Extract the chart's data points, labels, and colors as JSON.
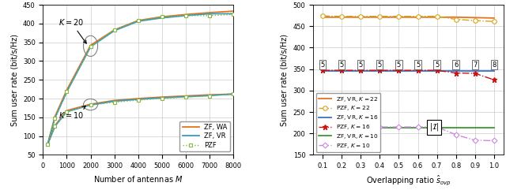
{
  "left": {
    "M_vals": [
      200,
      500,
      1000,
      2000,
      3000,
      4000,
      5000,
      6000,
      7000,
      8000
    ],
    "K20_ZF_WA": [
      79,
      152,
      223,
      342,
      383,
      408,
      418,
      424,
      429,
      433
    ],
    "K20_ZF_VR": [
      79,
      148,
      218,
      338,
      381,
      406,
      415,
      421,
      426,
      426
    ],
    "K20_PZF": [
      79,
      148,
      218,
      338,
      383,
      408,
      418,
      421,
      421,
      424
    ],
    "K10_ZF_WA": [
      79,
      128,
      168,
      185,
      195,
      200,
      204,
      207,
      210,
      212
    ],
    "K10_ZF_VR": [
      79,
      126,
      165,
      183,
      193,
      198,
      202,
      205,
      208,
      212
    ],
    "K10_PZF": [
      79,
      126,
      165,
      183,
      190,
      196,
      200,
      204,
      207,
      213
    ],
    "color_ZF_WA": "#e8721a",
    "color_ZF_VR": "#3a9abf",
    "color_PZF": "#85b840",
    "xlabel": "Number of antennas $M$",
    "ylabel": "Sum user rate (bit/s/Hz)",
    "xlim": [
      0,
      8000
    ],
    "ylim": [
      50,
      450
    ],
    "yticks": [
      50,
      100,
      150,
      200,
      250,
      300,
      350,
      400,
      450
    ],
    "xticks": [
      0,
      1000,
      2000,
      3000,
      4000,
      5000,
      6000,
      7000,
      8000
    ]
  },
  "right": {
    "s_vals": [
      0.1,
      0.2,
      0.3,
      0.4,
      0.5,
      0.6,
      0.7,
      0.8,
      0.9,
      1.0
    ],
    "ZF_VR_K22": [
      471,
      471,
      471,
      471,
      471,
      471,
      471,
      471,
      470,
      469
    ],
    "PZF_K22": [
      474,
      473,
      473,
      473,
      473,
      473,
      473,
      466,
      463,
      461
    ],
    "ZF_VR_K16": [
      346,
      346,
      346,
      346,
      346,
      346,
      346,
      346,
      346,
      346
    ],
    "PZF_K16": [
      347,
      347,
      347,
      347,
      347,
      347,
      347,
      341,
      340,
      325
    ],
    "ZF_VR_K10": [
      213,
      213,
      213,
      213,
      213,
      213,
      213,
      213,
      213,
      213
    ],
    "PZF_K10": [
      213,
      213,
      213,
      215,
      215,
      215,
      215,
      197,
      184,
      183
    ],
    "numbers_at_top": [
      5,
      5,
      5,
      5,
      5,
      5,
      5,
      6,
      7,
      8
    ],
    "num_y": 360,
    "color_ZF_VR_K22": "#e8721a",
    "color_PZF_K22": "#d4a520",
    "color_ZF_VR_K16": "#3a6fcc",
    "color_PZF_K16": "#cc1111",
    "color_ZF_VR_K10": "#3a9a30",
    "color_PZF_K10": "#cc88dd",
    "xlabel": "Overlapping ratio $\\hat{s}_{ovp}$",
    "ylabel": "Sum user rate (bit/s/Hz)",
    "xlim": [
      0.1,
      1.0
    ],
    "ylim": [
      150,
      500
    ],
    "yticks": [
      150,
      200,
      250,
      300,
      350,
      400,
      450,
      500
    ],
    "xticks": [
      0.1,
      0.2,
      0.3,
      0.4,
      0.5,
      0.6,
      0.7,
      0.8,
      0.9,
      1.0
    ]
  }
}
